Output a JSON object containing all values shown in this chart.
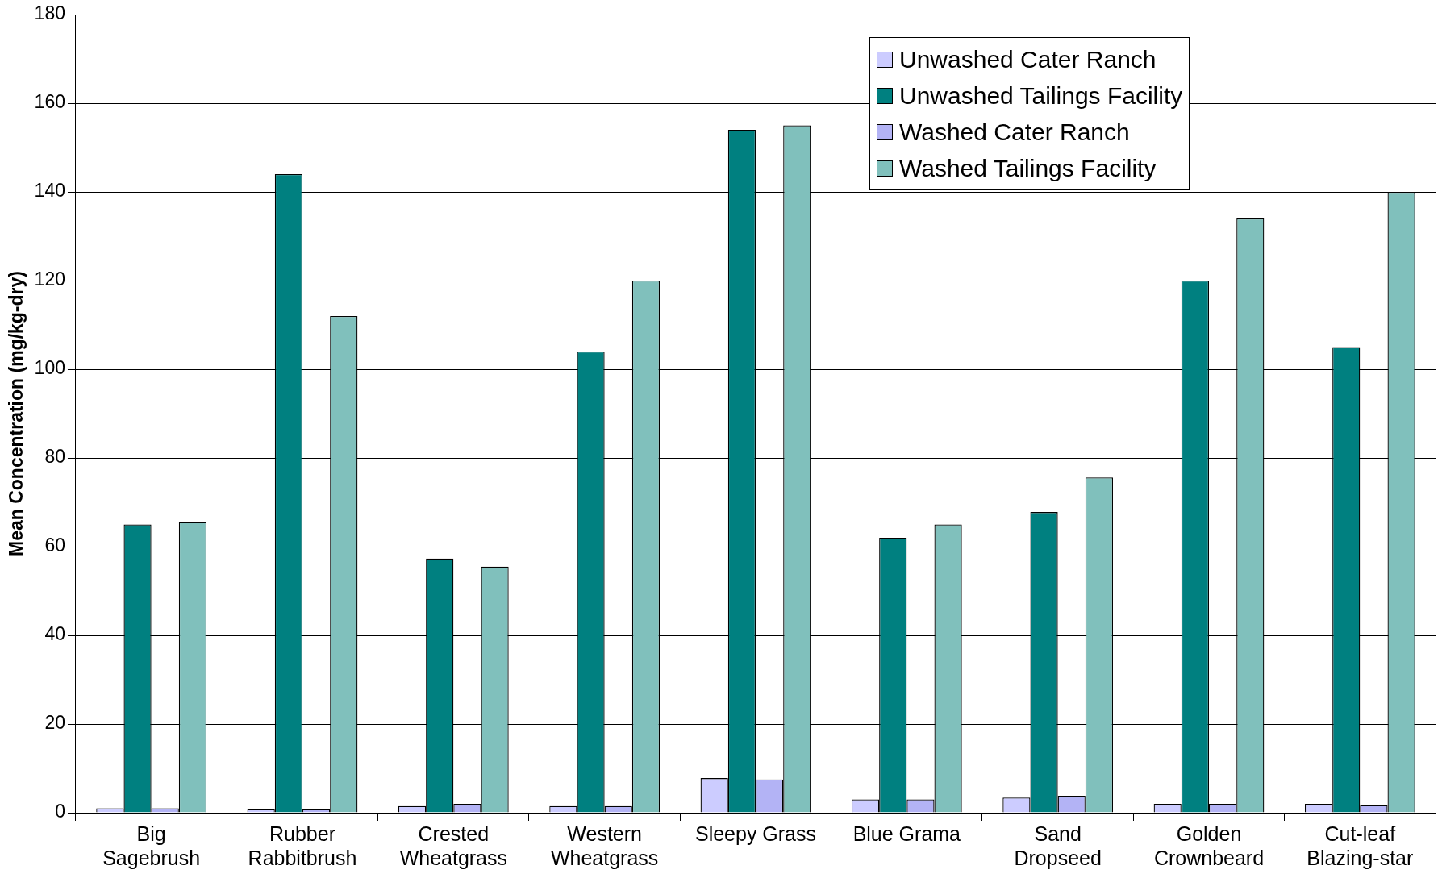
{
  "chart_data": {
    "type": "bar",
    "ylabel": "Mean Concentration (mg/kg-dry)",
    "categories": [
      "Big\nSagebrush",
      "Rubber\nRabbitbrush",
      "Crested\nWheatgrass",
      "Western\nWheatgrass",
      "Sleepy Grass",
      "Blue Grama",
      "Sand\nDropseed",
      "Golden\nCrownbeard",
      "Cut-leaf\nBlazing-star"
    ],
    "series": [
      {
        "name": "Unwashed Cater Ranch",
        "color": "#ccccff",
        "values": [
          1,
          0.8,
          1.5,
          1.5,
          7.8,
          3,
          3.4,
          2,
          2
        ]
      },
      {
        "name": "Unwashed Tailings Facility",
        "color": "#008080",
        "values": [
          65,
          144,
          57.3,
          104,
          154,
          62,
          67.8,
          120,
          105
        ]
      },
      {
        "name": "Washed Cater Ranch",
        "color": "#b3b3f5",
        "values": [
          1,
          0.8,
          2,
          1.5,
          7.5,
          3,
          3.8,
          2,
          1.7
        ]
      },
      {
        "name": "Washed Tailings Facility",
        "color": "#80c0bc",
        "values": [
          65.5,
          112,
          55.5,
          120,
          155,
          65,
          75.6,
          134,
          140
        ]
      }
    ],
    "ylim": [
      0,
      180
    ],
    "yticks": [
      0,
      20,
      40,
      60,
      80,
      100,
      120,
      140,
      160,
      180
    ],
    "grid": "y",
    "legend": "top right"
  }
}
